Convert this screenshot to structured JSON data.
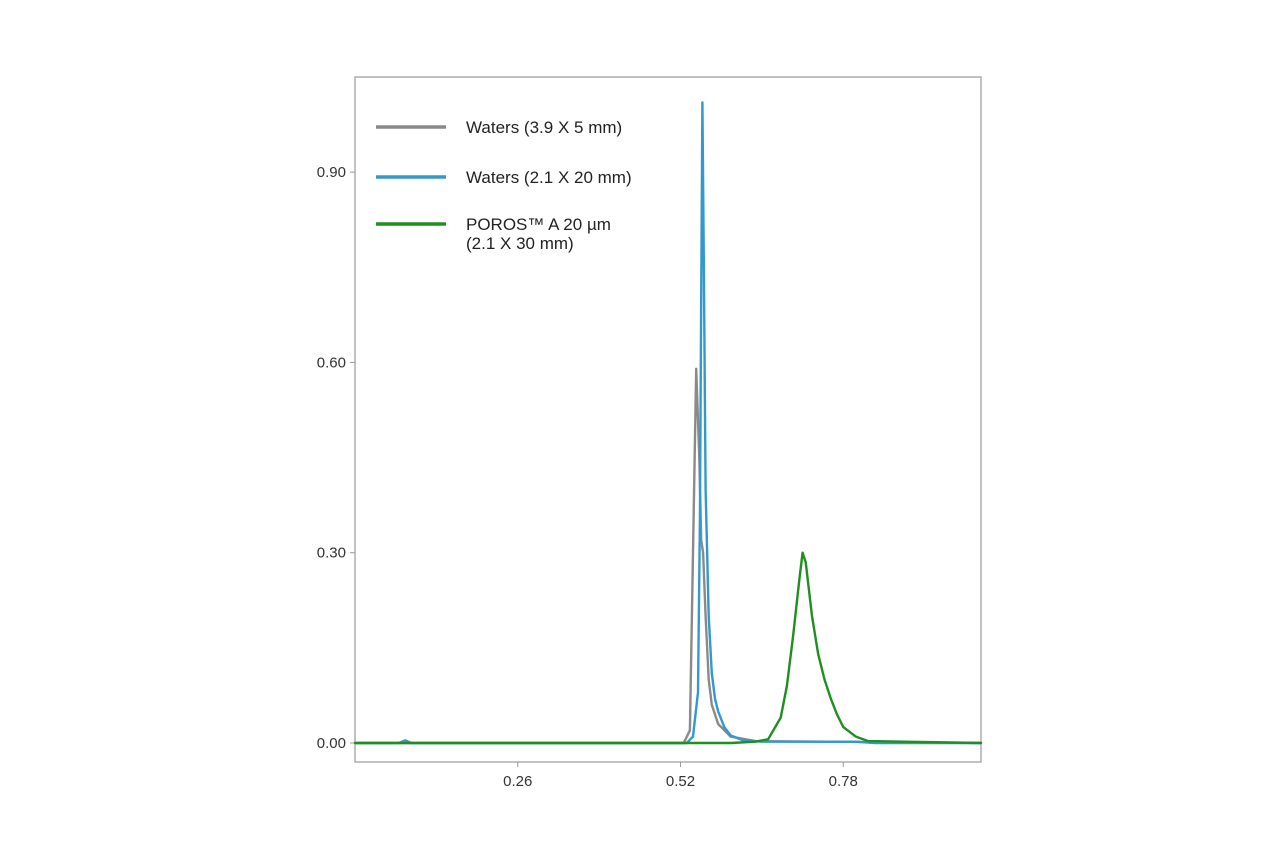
{
  "chart_data": {
    "type": "line",
    "title": "",
    "xlabel": "",
    "ylabel": "",
    "xlim": [
      0.0,
      1.0
    ],
    "ylim": [
      -0.03,
      1.05
    ],
    "x_ticks": [
      0.26,
      0.52,
      0.78
    ],
    "x_tick_labels": [
      "0.26",
      "0.52",
      "0.78"
    ],
    "y_ticks": [
      0.0,
      0.3,
      0.6,
      0.9
    ],
    "y_tick_labels": [
      "0.00",
      "0.30",
      "0.60",
      "0.90"
    ],
    "grid": false,
    "legend_position": "top-left",
    "series": [
      {
        "name": "Waters (3.9 X 5 mm)",
        "color": "#8a8a8a",
        "x": [
          0.0,
          0.5,
          0.525,
          0.535,
          0.54,
          0.545,
          0.55,
          0.553,
          0.556,
          0.56,
          0.565,
          0.57,
          0.58,
          0.6,
          0.64,
          1.0
        ],
        "y": [
          0.0,
          0.0,
          0.0,
          0.02,
          0.3,
          0.59,
          0.45,
          0.32,
          0.3,
          0.2,
          0.1,
          0.06,
          0.03,
          0.01,
          0.003,
          0.0
        ]
      },
      {
        "name": "Waters (2.1 X 20 mm)",
        "color": "#3399cc",
        "x": [
          0.0,
          0.07,
          0.08,
          0.09,
          0.1,
          0.12,
          0.53,
          0.54,
          0.548,
          0.551,
          0.553,
          0.555,
          0.557,
          0.56,
          0.565,
          0.57,
          0.575,
          0.58,
          0.59,
          0.6,
          0.62,
          0.65,
          0.8,
          0.83,
          1.0
        ],
        "y": [
          0.0,
          0.0,
          0.004,
          0.0,
          0.0,
          0.0,
          0.0,
          0.01,
          0.08,
          0.35,
          0.7,
          1.01,
          0.78,
          0.4,
          0.2,
          0.11,
          0.07,
          0.05,
          0.025,
          0.012,
          0.004,
          0.002,
          0.002,
          0.0,
          0.0
        ]
      },
      {
        "name": "POROS™ A 20 µm\n(2.1 X 30 mm)",
        "color": "#1f8f1f",
        "x": [
          0.0,
          0.6,
          0.64,
          0.66,
          0.68,
          0.69,
          0.7,
          0.71,
          0.715,
          0.72,
          0.73,
          0.74,
          0.75,
          0.76,
          0.77,
          0.78,
          0.8,
          0.82,
          1.0
        ],
        "y": [
          0.0,
          0.0,
          0.002,
          0.006,
          0.04,
          0.09,
          0.17,
          0.26,
          0.3,
          0.285,
          0.2,
          0.14,
          0.1,
          0.07,
          0.045,
          0.025,
          0.01,
          0.003,
          0.0
        ]
      }
    ]
  }
}
